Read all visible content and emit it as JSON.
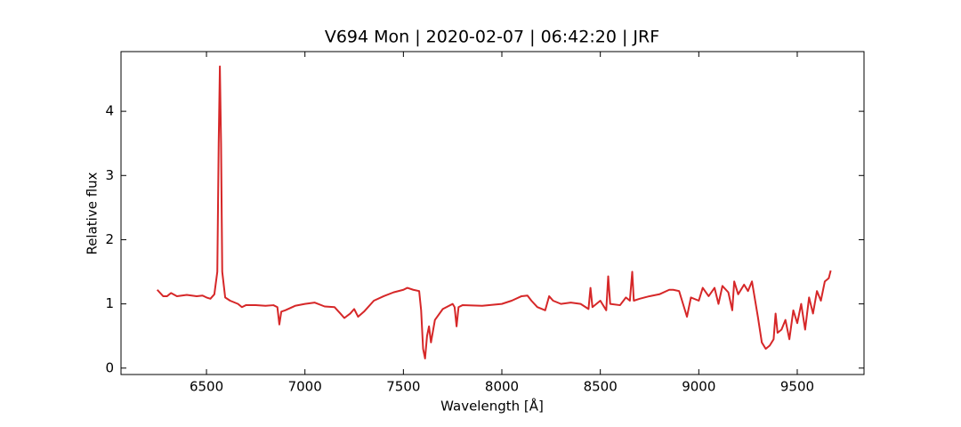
{
  "chart_data": {
    "type": "line",
    "title": "V694 Mon | 2020-02-07 | 06:42:20 | JRF",
    "xlabel": "Wavelength [Å]",
    "ylabel": "Relative flux",
    "xlim": [
      6066,
      9839
    ],
    "ylim": [
      -0.1,
      4.93
    ],
    "xticks": [
      6500,
      7000,
      7500,
      8000,
      8500,
      9000,
      9500
    ],
    "yticks": [
      0,
      1,
      2,
      3,
      4
    ],
    "x": [
      6250,
      6280,
      6300,
      6320,
      6350,
      6400,
      6450,
      6480,
      6500,
      6520,
      6540,
      6555,
      6562,
      6568,
      6574,
      6580,
      6595,
      6620,
      6660,
      6680,
      6700,
      6750,
      6800,
      6840,
      6860,
      6870,
      6880,
      6900,
      6950,
      7000,
      7050,
      7100,
      7150,
      7180,
      7200,
      7230,
      7250,
      7270,
      7300,
      7350,
      7400,
      7450,
      7500,
      7520,
      7550,
      7580,
      7590,
      7600,
      7610,
      7620,
      7630,
      7640,
      7660,
      7700,
      7750,
      7760,
      7770,
      7780,
      7800,
      7900,
      8000,
      8050,
      8100,
      8130,
      8150,
      8180,
      8220,
      8240,
      8260,
      8300,
      8350,
      8400,
      8440,
      8450,
      8460,
      8500,
      8530,
      8540,
      8550,
      8600,
      8630,
      8650,
      8662,
      8670,
      8700,
      8750,
      8800,
      8850,
      8870,
      8900,
      8920,
      8940,
      8960,
      9000,
      9020,
      9050,
      9080,
      9100,
      9120,
      9150,
      9170,
      9180,
      9200,
      9230,
      9250,
      9270,
      9300,
      9320,
      9340,
      9360,
      9380,
      9390,
      9400,
      9420,
      9440,
      9460,
      9480,
      9500,
      9520,
      9540,
      9560,
      9580,
      9600,
      9620,
      9640,
      9660,
      9670
    ],
    "series": [
      {
        "name": "Relative flux",
        "color": "#d62728",
        "values": [
          1.22,
          1.12,
          1.12,
          1.17,
          1.12,
          1.14,
          1.12,
          1.13,
          1.1,
          1.08,
          1.15,
          1.5,
          3.5,
          4.7,
          3.5,
          1.5,
          1.1,
          1.05,
          1.0,
          0.95,
          0.98,
          0.98,
          0.97,
          0.98,
          0.95,
          0.68,
          0.88,
          0.9,
          0.97,
          1.0,
          1.02,
          0.96,
          0.95,
          0.85,
          0.78,
          0.85,
          0.92,
          0.8,
          0.88,
          1.05,
          1.12,
          1.18,
          1.22,
          1.25,
          1.22,
          1.2,
          0.9,
          0.3,
          0.15,
          0.5,
          0.65,
          0.4,
          0.75,
          0.92,
          1.0,
          0.95,
          0.65,
          0.95,
          0.98,
          0.97,
          1.0,
          1.05,
          1.12,
          1.13,
          1.05,
          0.95,
          0.9,
          1.12,
          1.05,
          1.0,
          1.02,
          1.0,
          0.92,
          1.25,
          0.95,
          1.05,
          0.9,
          1.43,
          1.0,
          0.98,
          1.1,
          1.05,
          1.5,
          1.05,
          1.08,
          1.12,
          1.15,
          1.22,
          1.22,
          1.2,
          1.0,
          0.8,
          1.1,
          1.05,
          1.25,
          1.12,
          1.25,
          1.0,
          1.28,
          1.18,
          0.9,
          1.35,
          1.15,
          1.3,
          1.2,
          1.35,
          0.8,
          0.4,
          0.3,
          0.35,
          0.45,
          0.85,
          0.55,
          0.6,
          0.75,
          0.45,
          0.9,
          0.7,
          1.0,
          0.6,
          1.1,
          0.85,
          1.2,
          1.05,
          1.35,
          1.4,
          1.52
        ]
      }
    ]
  }
}
